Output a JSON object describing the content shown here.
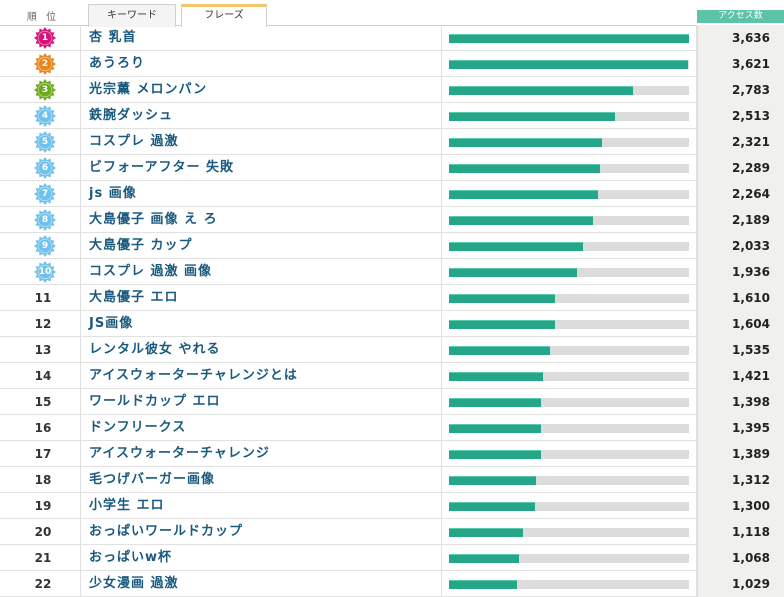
{
  "header": {
    "rank_label": "順 位",
    "tabs": [
      {
        "label": "キーワード",
        "active": false
      },
      {
        "label": "フレーズ",
        "active": true
      }
    ],
    "count_label": "アクセス数"
  },
  "colors": {
    "badge_pink": "#d6127a",
    "badge_orange": "#e8861c",
    "badge_green": "#6eaa1e",
    "badge_blue": "#6fc0ea",
    "bar_fill": "#26a688",
    "bar_track": "#dcdcdc"
  },
  "max_count": 3636,
  "rows": [
    {
      "rank": "1",
      "phrase": "杏 乳首",
      "count": "3,636",
      "value": 3636,
      "badge": "pink"
    },
    {
      "rank": "2",
      "phrase": "あうろり",
      "count": "3,621",
      "value": 3621,
      "badge": "orange"
    },
    {
      "rank": "3",
      "phrase": "光宗薫 メロンパン",
      "count": "2,783",
      "value": 2783,
      "badge": "green"
    },
    {
      "rank": "4",
      "phrase": "鉄腕ダッシュ",
      "count": "2,513",
      "value": 2513,
      "badge": "blue"
    },
    {
      "rank": "5",
      "phrase": "コスプレ 過激",
      "count": "2,321",
      "value": 2321,
      "badge": "blue"
    },
    {
      "rank": "6",
      "phrase": "ビフォーアフター 失敗",
      "count": "2,289",
      "value": 2289,
      "badge": "blue"
    },
    {
      "rank": "7",
      "phrase": "js 画像",
      "count": "2,264",
      "value": 2264,
      "badge": "blue"
    },
    {
      "rank": "8",
      "phrase": "大島優子 画像 え ろ",
      "count": "2,189",
      "value": 2189,
      "badge": "blue"
    },
    {
      "rank": "9",
      "phrase": "大島優子 カップ",
      "count": "2,033",
      "value": 2033,
      "badge": "blue"
    },
    {
      "rank": "10",
      "phrase": "コスプレ 過激 画像",
      "count": "1,936",
      "value": 1936,
      "badge": "blue"
    },
    {
      "rank": "11",
      "phrase": "大島優子 エロ",
      "count": "1,610",
      "value": 1610,
      "badge": null
    },
    {
      "rank": "12",
      "phrase": "JS画像",
      "count": "1,604",
      "value": 1604,
      "badge": null
    },
    {
      "rank": "13",
      "phrase": "レンタル彼女 やれる",
      "count": "1,535",
      "value": 1535,
      "badge": null
    },
    {
      "rank": "14",
      "phrase": "アイスウォーターチャレンジとは",
      "count": "1,421",
      "value": 1421,
      "badge": null
    },
    {
      "rank": "15",
      "phrase": "ワールドカップ エロ",
      "count": "1,398",
      "value": 1398,
      "badge": null
    },
    {
      "rank": "16",
      "phrase": "ドンフリークス",
      "count": "1,395",
      "value": 1395,
      "badge": null
    },
    {
      "rank": "17",
      "phrase": "アイスウォーターチャレンジ",
      "count": "1,389",
      "value": 1389,
      "badge": null
    },
    {
      "rank": "18",
      "phrase": "毛つげバーガー画像",
      "count": "1,312",
      "value": 1312,
      "badge": null
    },
    {
      "rank": "19",
      "phrase": "小学生 エロ",
      "count": "1,300",
      "value": 1300,
      "badge": null
    },
    {
      "rank": "20",
      "phrase": "おっぱいワールドカップ",
      "count": "1,118",
      "value": 1118,
      "badge": null
    },
    {
      "rank": "21",
      "phrase": "おっぱいw杯",
      "count": "1,068",
      "value": 1068,
      "badge": null
    },
    {
      "rank": "22",
      "phrase": "少女漫画 過激",
      "count": "1,029",
      "value": 1029,
      "badge": null
    }
  ]
}
